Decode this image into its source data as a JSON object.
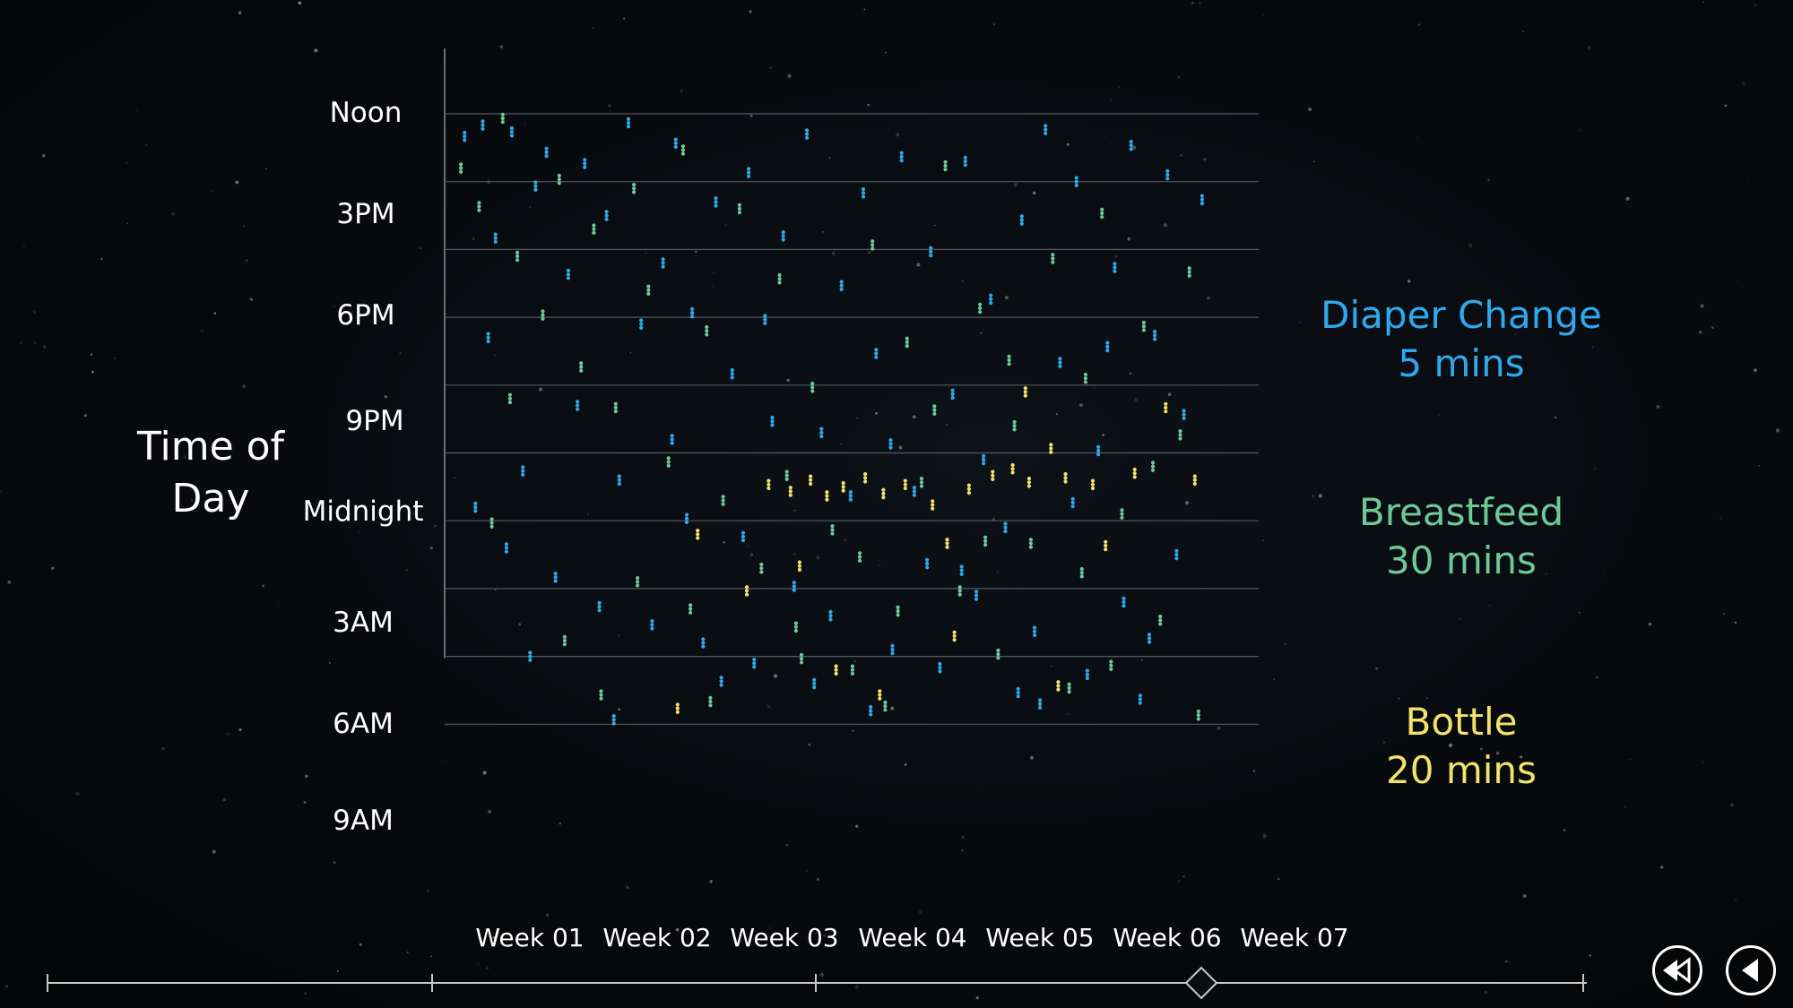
{
  "chart_data": {
    "type": "scatter",
    "title": "",
    "ylabel": "Time of Day",
    "xlabel": "",
    "y_ticks": [
      "Noon",
      "3PM",
      "6PM",
      "9PM",
      "Midnight",
      "3AM",
      "6AM",
      "9AM"
    ],
    "x_ticks": [
      "Week 01",
      "Week 02",
      "Week 03",
      "Week 04",
      "Week 05",
      "Week 06",
      "Week 07"
    ],
    "xlim": [
      0,
      42
    ],
    "ylim_hours_from_noon": [
      0,
      27
    ],
    "grid": true,
    "legend_position": "right",
    "series": [
      {
        "name": "Diaper Change",
        "duration": "5 mins",
        "color": "#2ea9ee",
        "points": [
          [
            0.5,
            1
          ],
          [
            1.5,
            0.5
          ],
          [
            2.2,
            5.5
          ],
          [
            3.1,
            0.8
          ],
          [
            4.4,
            3.2
          ],
          [
            5.0,
            1.7
          ],
          [
            6.2,
            7.1
          ],
          [
            7.1,
            2.2
          ],
          [
            8.3,
            4.5
          ],
          [
            9.5,
            0.4
          ],
          [
            10.2,
            9.3
          ],
          [
            11.4,
            6.6
          ],
          [
            12.1,
            1.3
          ],
          [
            13.0,
            8.8
          ],
          [
            14.3,
            3.9
          ],
          [
            15.2,
            11.5
          ],
          [
            16.1,
            2.6
          ],
          [
            17.4,
            13.6
          ],
          [
            18.0,
            5.4
          ],
          [
            19.3,
            0.9
          ],
          [
            20.1,
            14.1
          ],
          [
            21.2,
            7.6
          ],
          [
            22.4,
            3.5
          ],
          [
            23.1,
            10.6
          ],
          [
            24.5,
            1.9
          ],
          [
            25.2,
            16.7
          ],
          [
            26.1,
            6.1
          ],
          [
            27.3,
            12.4
          ],
          [
            28.0,
            2.1
          ],
          [
            29.4,
            8.2
          ],
          [
            30.2,
            18.3
          ],
          [
            31.1,
            4.7
          ],
          [
            32.4,
            0.7
          ],
          [
            33.2,
            11.0
          ],
          [
            34.1,
            3.0
          ],
          [
            35.3,
            14.9
          ],
          [
            36.2,
            6.8
          ],
          [
            37.1,
            1.4
          ],
          [
            38.4,
            9.8
          ],
          [
            39.1,
            2.7
          ],
          [
            40.0,
            13.3
          ],
          [
            2.8,
            19.2
          ],
          [
            5.5,
            20.5
          ],
          [
            7.9,
            21.8
          ],
          [
            10.8,
            22.6
          ],
          [
            13.6,
            23.4
          ],
          [
            16.4,
            24.3
          ],
          [
            19.7,
            25.2
          ],
          [
            22.8,
            26.4
          ],
          [
            25.9,
            19.9
          ],
          [
            28.6,
            21.3
          ],
          [
            31.8,
            22.9
          ],
          [
            34.7,
            24.8
          ],
          [
            37.6,
            25.9
          ],
          [
            1.1,
            17.4
          ],
          [
            3.7,
            15.8
          ],
          [
            6.7,
            12.9
          ],
          [
            9.0,
            16.2
          ],
          [
            12.7,
            17.9
          ],
          [
            15.8,
            18.7
          ],
          [
            18.6,
            20.9
          ],
          [
            21.7,
            16.9
          ],
          [
            24.0,
            23.7
          ],
          [
            27.8,
            20.2
          ],
          [
            30.9,
            25.6
          ],
          [
            33.9,
            17.2
          ],
          [
            36.7,
            21.6
          ],
          [
            39.6,
            19.5
          ],
          [
            4.1,
            24.0
          ],
          [
            8.7,
            26.8
          ],
          [
            14.6,
            25.1
          ],
          [
            20.6,
            22.2
          ],
          [
            26.6,
            24.5
          ],
          [
            32.1,
            26.1
          ],
          [
            38.1,
            23.2
          ],
          [
            1.8,
            9.9
          ],
          [
            11.9,
            14.4
          ],
          [
            17.0,
            9.1
          ],
          [
            23.9,
            14.6
          ],
          [
            29.0,
            15.3
          ],
          [
            35.8,
            10.3
          ],
          [
            41.0,
            3.8
          ]
        ]
      },
      {
        "name": "Breastfeed",
        "duration": "30 mins",
        "color": "#6ec99a",
        "points": [
          [
            0.3,
            2.4
          ],
          [
            1.3,
            4.1
          ],
          [
            2.6,
            0.2
          ],
          [
            3.4,
            6.3
          ],
          [
            4.8,
            8.9
          ],
          [
            5.7,
            2.9
          ],
          [
            6.9,
            11.2
          ],
          [
            7.6,
            5.1
          ],
          [
            8.8,
            13.0
          ],
          [
            9.8,
            3.3
          ],
          [
            10.6,
            7.8
          ],
          [
            11.7,
            15.4
          ],
          [
            12.5,
            1.6
          ],
          [
            13.8,
            9.6
          ],
          [
            14.7,
            17.1
          ],
          [
            15.6,
            4.2
          ],
          [
            16.8,
            20.1
          ],
          [
            17.8,
            7.3
          ],
          [
            18.7,
            22.7
          ],
          [
            19.6,
            12.1
          ],
          [
            20.7,
            18.4
          ],
          [
            21.8,
            24.6
          ],
          [
            22.9,
            5.8
          ],
          [
            23.6,
            26.2
          ],
          [
            24.8,
            10.1
          ],
          [
            25.6,
            16.3
          ],
          [
            26.9,
            2.3
          ],
          [
            27.7,
            21.1
          ],
          [
            28.8,
            8.6
          ],
          [
            29.8,
            23.9
          ],
          [
            30.7,
            13.8
          ],
          [
            31.6,
            19.0
          ],
          [
            32.8,
            6.4
          ],
          [
            33.7,
            25.4
          ],
          [
            34.6,
            11.7
          ],
          [
            35.5,
            4.4
          ],
          [
            36.6,
            17.7
          ],
          [
            37.8,
            9.4
          ],
          [
            38.7,
            22.4
          ],
          [
            39.8,
            14.2
          ],
          [
            40.8,
            26.6
          ],
          [
            2.0,
            18.1
          ],
          [
            6.0,
            23.3
          ],
          [
            10.0,
            20.7
          ],
          [
            14.0,
            26.0
          ],
          [
            18.2,
            16.0
          ],
          [
            22.2,
            19.6
          ],
          [
            26.3,
            13.1
          ],
          [
            30.4,
            10.9
          ],
          [
            34.4,
            20.3
          ],
          [
            38.3,
            15.6
          ],
          [
            3.0,
            12.6
          ],
          [
            8.0,
            25.7
          ],
          [
            12.9,
            21.9
          ],
          [
            19.0,
            24.1
          ],
          [
            24.3,
            22.0
          ],
          [
            29.1,
            18.9
          ],
          [
            36.0,
            24.4
          ],
          [
            40.3,
            7.0
          ]
        ]
      },
      {
        "name": "Bottle",
        "duration": "20 mins",
        "color": "#f2e36a",
        "points": [
          [
            17.2,
            16.4
          ],
          [
            18.4,
            16.7
          ],
          [
            19.5,
            16.2
          ],
          [
            20.4,
            16.9
          ],
          [
            21.3,
            16.5
          ],
          [
            22.5,
            16.1
          ],
          [
            23.5,
            16.8
          ],
          [
            24.7,
            16.4
          ],
          [
            26.2,
            17.3
          ],
          [
            27.0,
            19.0
          ],
          [
            28.2,
            16.6
          ],
          [
            29.5,
            16.0
          ],
          [
            30.6,
            15.7
          ],
          [
            31.5,
            16.3
          ],
          [
            32.7,
            14.8
          ],
          [
            33.5,
            16.1
          ],
          [
            35.0,
            16.4
          ],
          [
            37.3,
            15.9
          ],
          [
            40.6,
            16.2
          ],
          [
            13.3,
            18.6
          ],
          [
            18.9,
            20.0
          ],
          [
            20.9,
            24.6
          ],
          [
            23.3,
            25.7
          ],
          [
            27.4,
            23.1
          ],
          [
            31.3,
            12.3
          ],
          [
            33.1,
            25.3
          ],
          [
            35.7,
            19.1
          ],
          [
            12.2,
            26.3
          ],
          [
            39.0,
            13.0
          ],
          [
            16.0,
            21.1
          ]
        ]
      }
    ]
  },
  "legend": [
    {
      "label": "Diaper Change",
      "duration": "5 mins"
    },
    {
      "label": "Breastfeed",
      "duration": "30 mins"
    },
    {
      "label": "Bottle",
      "duration": "20 mins"
    }
  ],
  "nav": {
    "rewind_icon": "rewind-icon",
    "back_icon": "play-back-icon"
  },
  "colors": {
    "grid": "#555a60",
    "axis": "#8a9097",
    "timeline": "#c8c8c8"
  }
}
